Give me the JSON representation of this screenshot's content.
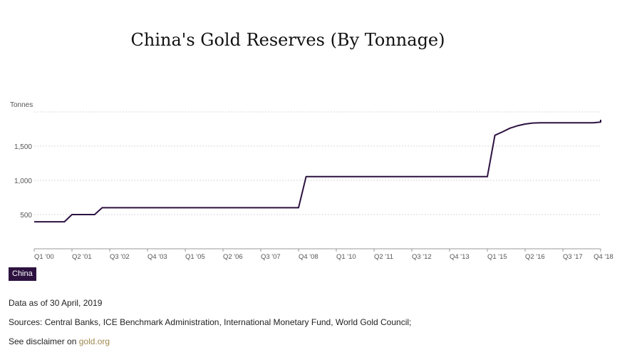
{
  "title": "China's Gold Reserves (By Tonnage)",
  "chart_data": {
    "type": "line",
    "title": "China's Gold Reserves (By Tonnage)",
    "ylabel": "Tonnes",
    "ylim": [
      0,
      2000
    ],
    "y_ticks": [
      500,
      1000,
      1500,
      2000
    ],
    "y_tick_labels": [
      "500",
      "1,000",
      "1,500",
      ""
    ],
    "grid": true,
    "x_tick_labels": [
      "Q1 '00",
      "Q2 '01",
      "Q3 '02",
      "Q4 '03",
      "Q1 '05",
      "Q2 '06",
      "Q3 '07",
      "Q4 '08",
      "Q1 '10",
      "Q2 '11",
      "Q3 '12",
      "Q4 '13",
      "Q1 '15",
      "Q2 '16",
      "Q3 '17",
      "Q4 '18"
    ],
    "series": [
      {
        "name": "China",
        "color": "#2d1240",
        "x": [
          "Q1 '00",
          "Q4 '00",
          "Q1 '01",
          "Q2 '01",
          "Q3 '01",
          "Q4 '01",
          "Q1 '02",
          "Q2 '02",
          "Q3 '02",
          "Q4 '02",
          "Q4 '08",
          "Q1 '09",
          "Q1 '15",
          "Q2 '15",
          "Q3 '15",
          "Q4 '15",
          "Q1 '16",
          "Q2 '16",
          "Q3 '16",
          "Q4 '16",
          "Q4 '17",
          "Q3 '18",
          "Q4 '18",
          "Q1 '19"
        ],
        "values": [
          395,
          395,
          395,
          500,
          500,
          500,
          500,
          600,
          600,
          600,
          600,
          1054,
          1054,
          1658,
          1708,
          1762,
          1798,
          1823,
          1838,
          1842,
          1842,
          1842,
          1852,
          1885
        ]
      }
    ]
  },
  "legend": {
    "label": "China",
    "color": "#2d1240"
  },
  "footer": {
    "date_note": "Data as of 30 April, 2019",
    "sources": "Sources: Central Banks, ICE Benchmark Administration, International Monetary Fund, World Gold Council;",
    "disclaimer_prefix": "See disclaimer on",
    "disclaimer_link": "gold.org"
  }
}
